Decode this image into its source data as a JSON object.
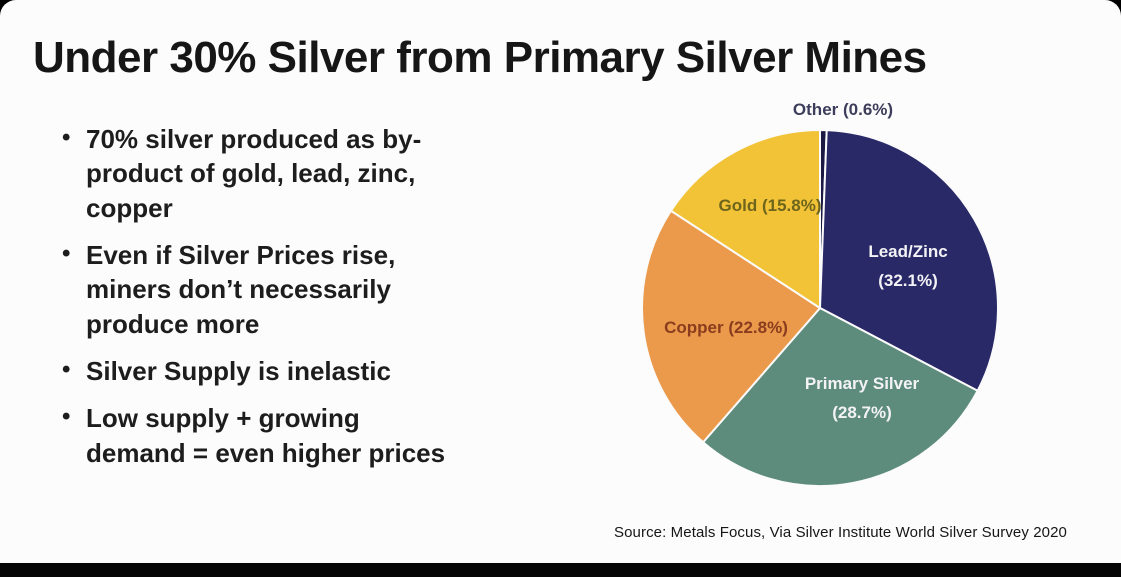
{
  "page": {
    "title": "Under 30% Silver from Primary Silver Mines",
    "source_text": "Source:  Metals Focus, Via Silver Institute World Silver Survey 2020"
  },
  "bullets": [
    "70% silver produced as by-product of gold, lead, zinc, copper",
    "Even if Silver Prices rise, miners don’t necessarily produce more",
    "Silver Supply is inelastic",
    "Low supply + growing demand = even higher prices"
  ],
  "chart_data": {
    "type": "pie",
    "units": "percent",
    "direction": "clockwise",
    "start_angle_deg": -90,
    "legend_position": "on-slices",
    "slices": [
      {
        "id": "other",
        "label": "Other",
        "value": 0.6,
        "display": "Other (0.6%)",
        "pct_text": "(0.6%)",
        "color": "#1a1a45",
        "label_color": "#3d3d5c"
      },
      {
        "id": "lead-zinc",
        "label": "Lead/Zinc",
        "value": 32.1,
        "display": "Lead/Zinc (32.1%)",
        "pct_text": "(32.1%)",
        "color": "#2a2968",
        "label_color": "#f3f3f6"
      },
      {
        "id": "primary-silver",
        "label": "Primary Silver",
        "value": 28.7,
        "display": "Primary Silver (28.7%)",
        "pct_text": "(28.7%)",
        "color": "#5e8c7c",
        "label_color": "#f3f3f6"
      },
      {
        "id": "copper",
        "label": "Copper",
        "value": 22.8,
        "display": "Copper (22.8%)",
        "pct_text": "(22.8%)",
        "color": "#eb9a4b",
        "label_color": "#8a3c1e"
      },
      {
        "id": "gold",
        "label": "Gold",
        "value": 15.8,
        "display": "Gold (15.8%)",
        "pct_text": "(15.8%)",
        "color": "#f2c336",
        "label_color": "#6e651d"
      }
    ]
  }
}
